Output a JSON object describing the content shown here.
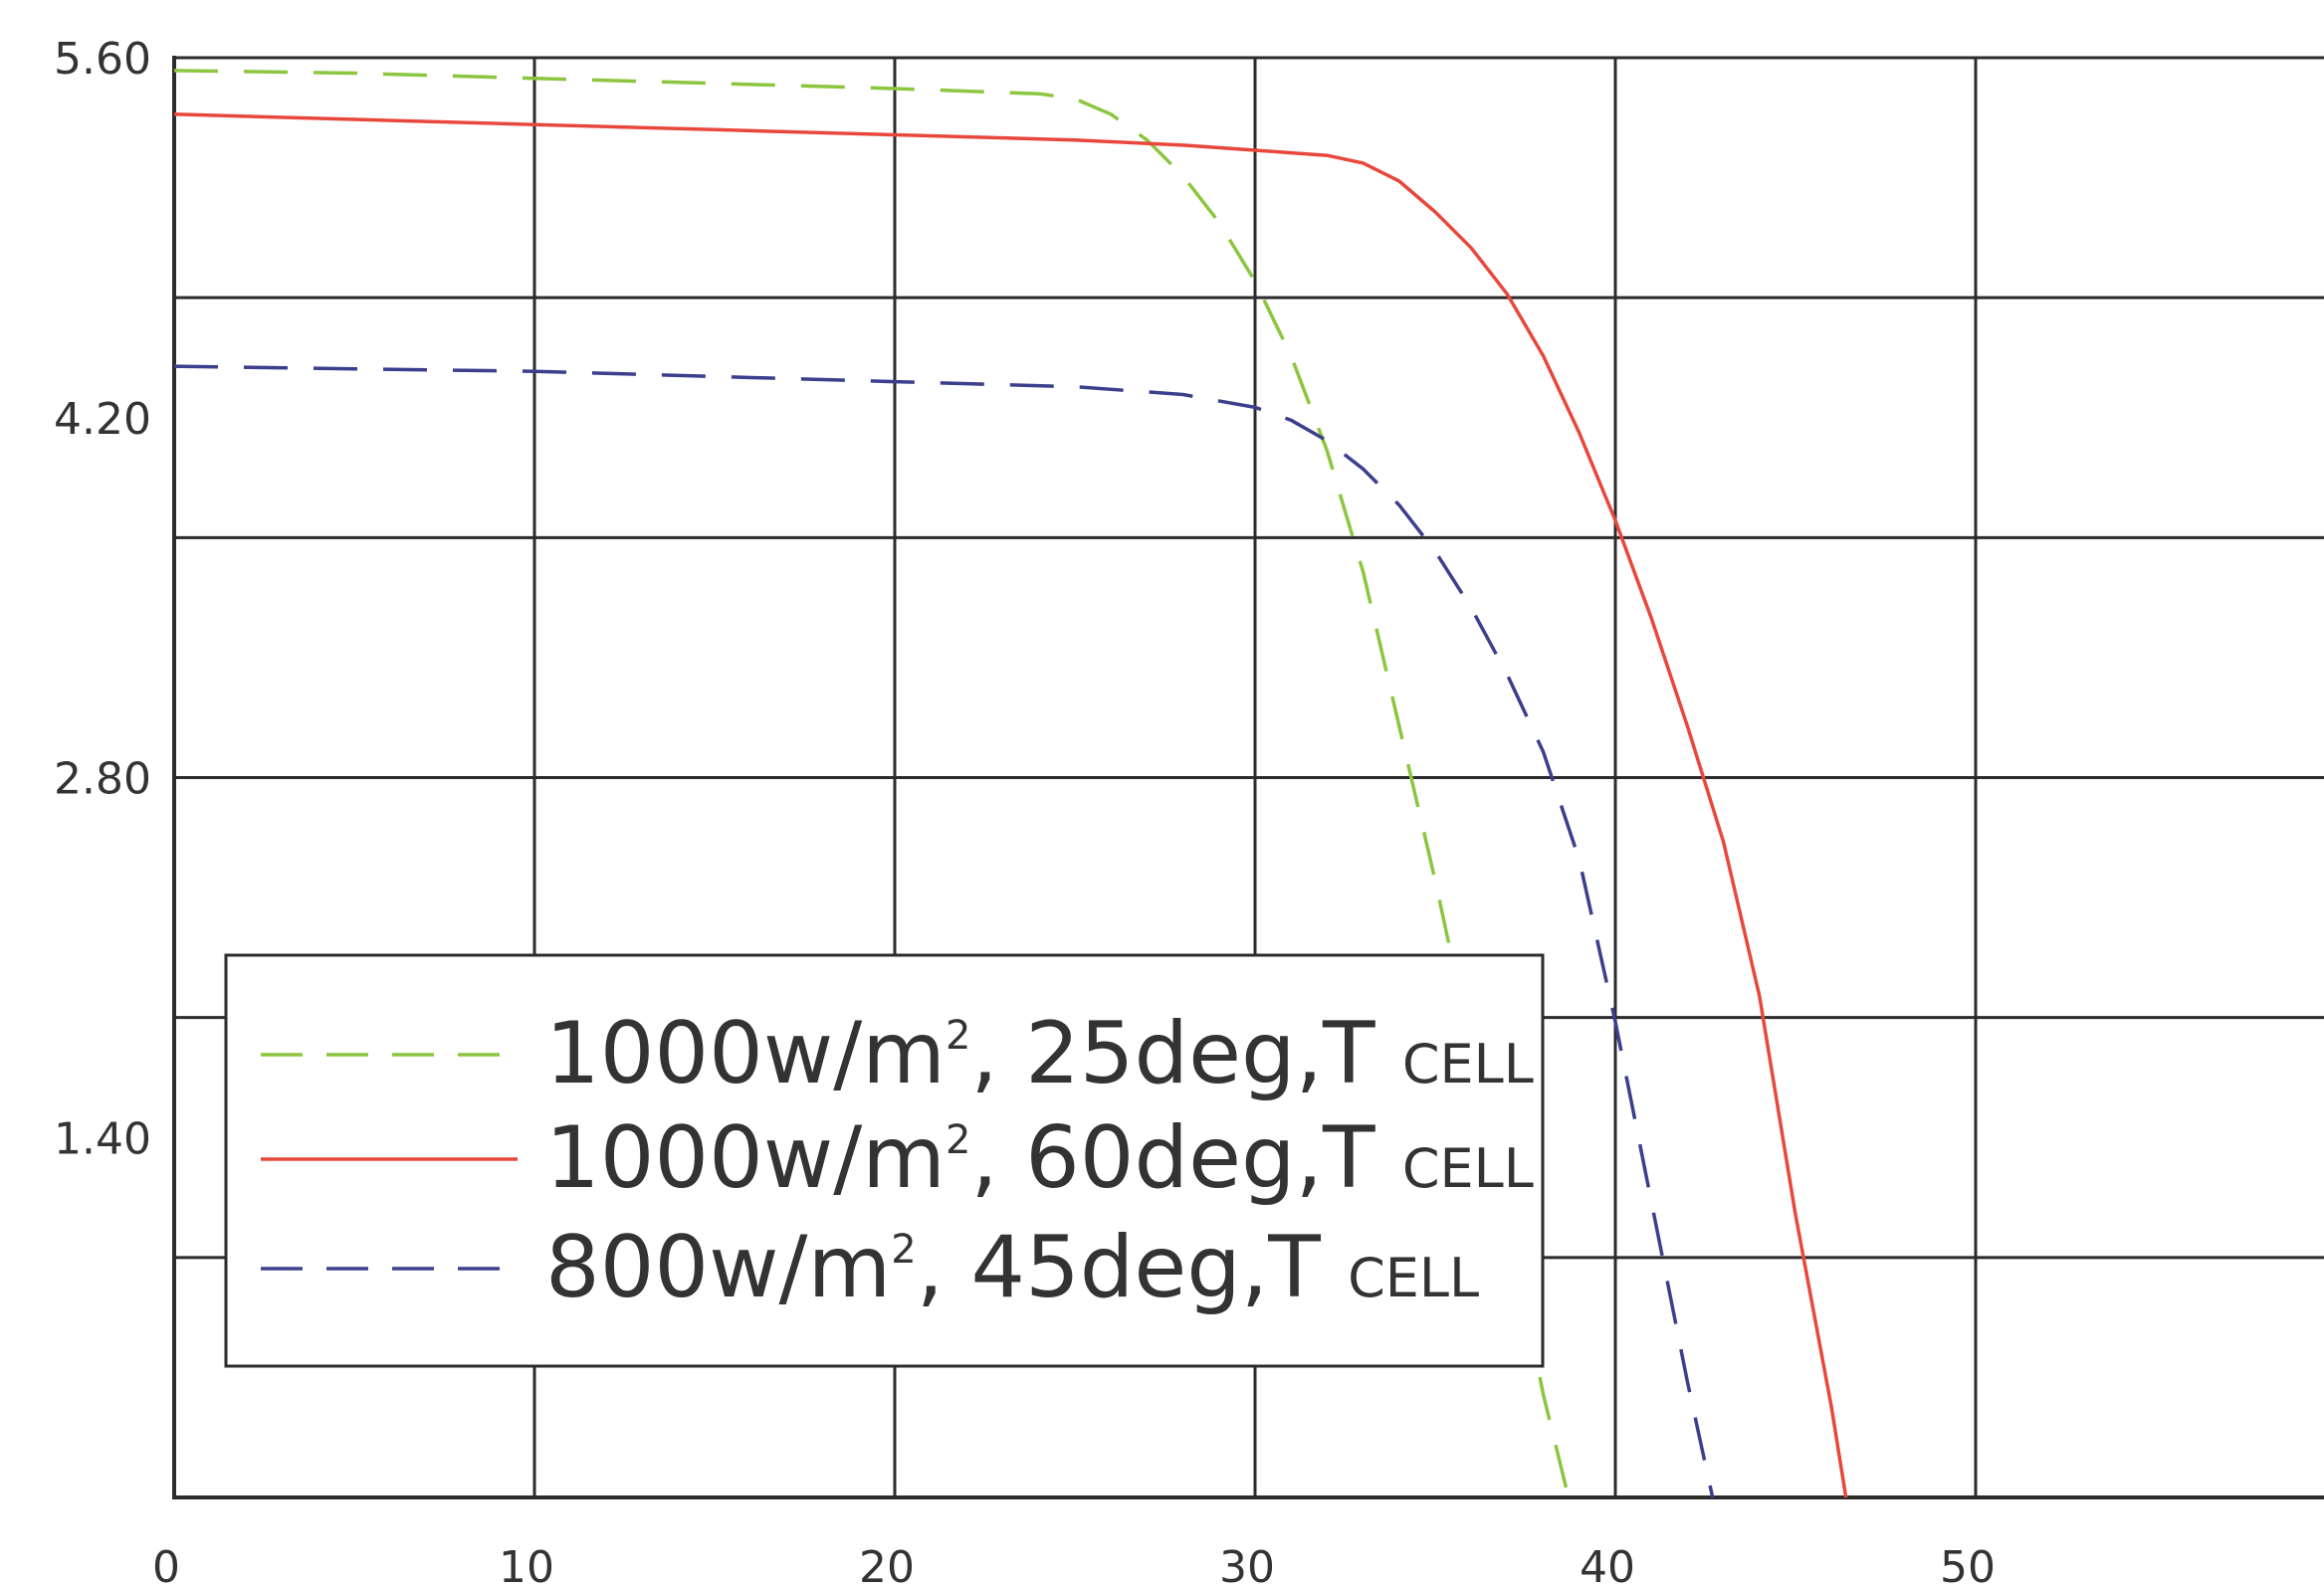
{
  "chart_data": {
    "type": "line",
    "xlim": [
      0,
      50
    ],
    "ylim": [
      0,
      5.6
    ],
    "grid": true,
    "x_ticks": [
      {
        "value": 0,
        "label": "0"
      },
      {
        "value": 10,
        "label": "10"
      },
      {
        "value": 20,
        "label": "20"
      },
      {
        "value": 30,
        "label": "30"
      },
      {
        "value": 40,
        "label": "40"
      },
      {
        "value": 50,
        "label": "50"
      }
    ],
    "y_ticks": [
      {
        "value": 5.6,
        "label": "5.60"
      },
      {
        "value": 4.2,
        "label": "4.20"
      },
      {
        "value": 2.8,
        "label": "2.80"
      },
      {
        "value": 1.4,
        "label": "1.40"
      }
    ],
    "x_gridlines": [
      0,
      10,
      20,
      30,
      40,
      50
    ],
    "y_gridlines": [
      0,
      0.933,
      1.867,
      2.8,
      3.733,
      4.667,
      5.6
    ],
    "legend_position": "bottom-left",
    "series": [
      {
        "name": "1000w/m², 25deg,T cell",
        "legend": {
          "prefix": "1000w/m",
          "sup": "2",
          "mid": ", 25deg,T",
          "sub": "CELL"
        },
        "color": "#8cc63f",
        "dash": "dashed",
        "x": [
          0,
          5,
          10,
          15,
          20,
          24,
          25,
          26,
          27,
          28,
          29,
          30,
          31,
          32,
          33,
          34,
          35,
          36,
          37,
          38,
          38.7
        ],
        "y": [
          5.55,
          5.54,
          5.52,
          5.5,
          5.48,
          5.46,
          5.44,
          5.38,
          5.28,
          5.14,
          4.96,
          4.73,
          4.44,
          4.07,
          3.6,
          3.0,
          2.4,
          1.75,
          1.1,
          0.4,
          0.0
        ]
      },
      {
        "name": "1000w/m², 60deg,T cell",
        "legend": {
          "prefix": "1000w/m",
          "sup": "2",
          "mid": ", 60deg,T",
          "sub": "CELL"
        },
        "color": "#e8483c",
        "dash": "solid",
        "x": [
          0,
          5,
          10,
          15,
          20,
          25,
          28,
          30,
          32,
          33,
          34,
          35,
          36,
          37,
          38,
          39,
          40,
          41,
          42,
          43,
          44,
          45,
          46,
          46.4
        ],
        "y": [
          5.38,
          5.36,
          5.34,
          5.32,
          5.3,
          5.28,
          5.26,
          5.24,
          5.22,
          5.19,
          5.12,
          5.0,
          4.86,
          4.68,
          4.44,
          4.14,
          3.8,
          3.42,
          3.0,
          2.55,
          1.95,
          1.1,
          0.35,
          0.0
        ]
      },
      {
        "name": "800w/m², 45deg,T cell",
        "legend": {
          "prefix": "800w/m",
          "sup": "2",
          "mid": ", 45deg,T",
          "sub": "CELL"
        },
        "color": "#3b3f8c",
        "dash": "dashed",
        "x": [
          0,
          5,
          10,
          15,
          20,
          25,
          28,
          30,
          31,
          32,
          33,
          34,
          35,
          36,
          37,
          38,
          39,
          40,
          41,
          42,
          42.7
        ],
        "y": [
          4.4,
          4.39,
          4.38,
          4.36,
          4.34,
          4.32,
          4.29,
          4.24,
          4.19,
          4.11,
          4.0,
          3.86,
          3.68,
          3.46,
          3.2,
          2.9,
          2.48,
          1.85,
          1.15,
          0.45,
          0.0
        ]
      }
    ]
  }
}
